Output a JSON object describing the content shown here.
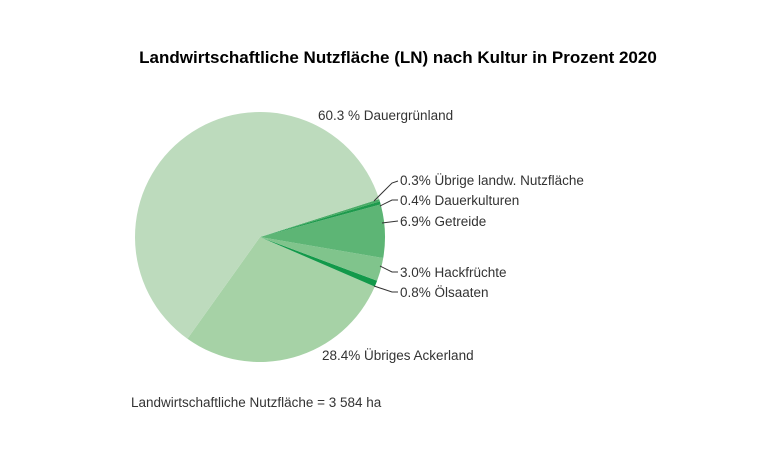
{
  "chart_data": {
    "type": "pie",
    "title": "Landwirtschaftliche Nutzfläche (LN) nach Kultur in Prozent 2020",
    "unit": "%",
    "slices": [
      {
        "name": "Dauergrünland",
        "value": 60.3,
        "label": "60.3 % Dauergrünland",
        "color": "#bddbbd"
      },
      {
        "name": "Übriges Ackerland",
        "value": 28.4,
        "label": "28.4%  Übriges Ackerland",
        "color": "#a6d2a6"
      },
      {
        "name": "Ölsaaten",
        "value": 0.8,
        "label": "0.8% Ölsaaten",
        "color": "#12994a"
      },
      {
        "name": "Hackfrüchte",
        "value": 3.0,
        "label": "3.0%  Hackfrüchte",
        "color": "#80c48c"
      },
      {
        "name": "Getreide",
        "value": 6.9,
        "label": "6.9%  Getreide",
        "color": "#5db575"
      },
      {
        "name": "Dauerkulturen",
        "value": 0.4,
        "label": "0.4% Dauerkulturen",
        "color": "#1d9a4c"
      },
      {
        "name": "Übrige landw. Nutzfläche",
        "value": 0.3,
        "label": "0.3%  Übrige landw. Nutzfläche",
        "color": "#4aab66"
      }
    ],
    "footnote": "Landwirtschaftliche Nutzfläche = 3 584 ha"
  }
}
